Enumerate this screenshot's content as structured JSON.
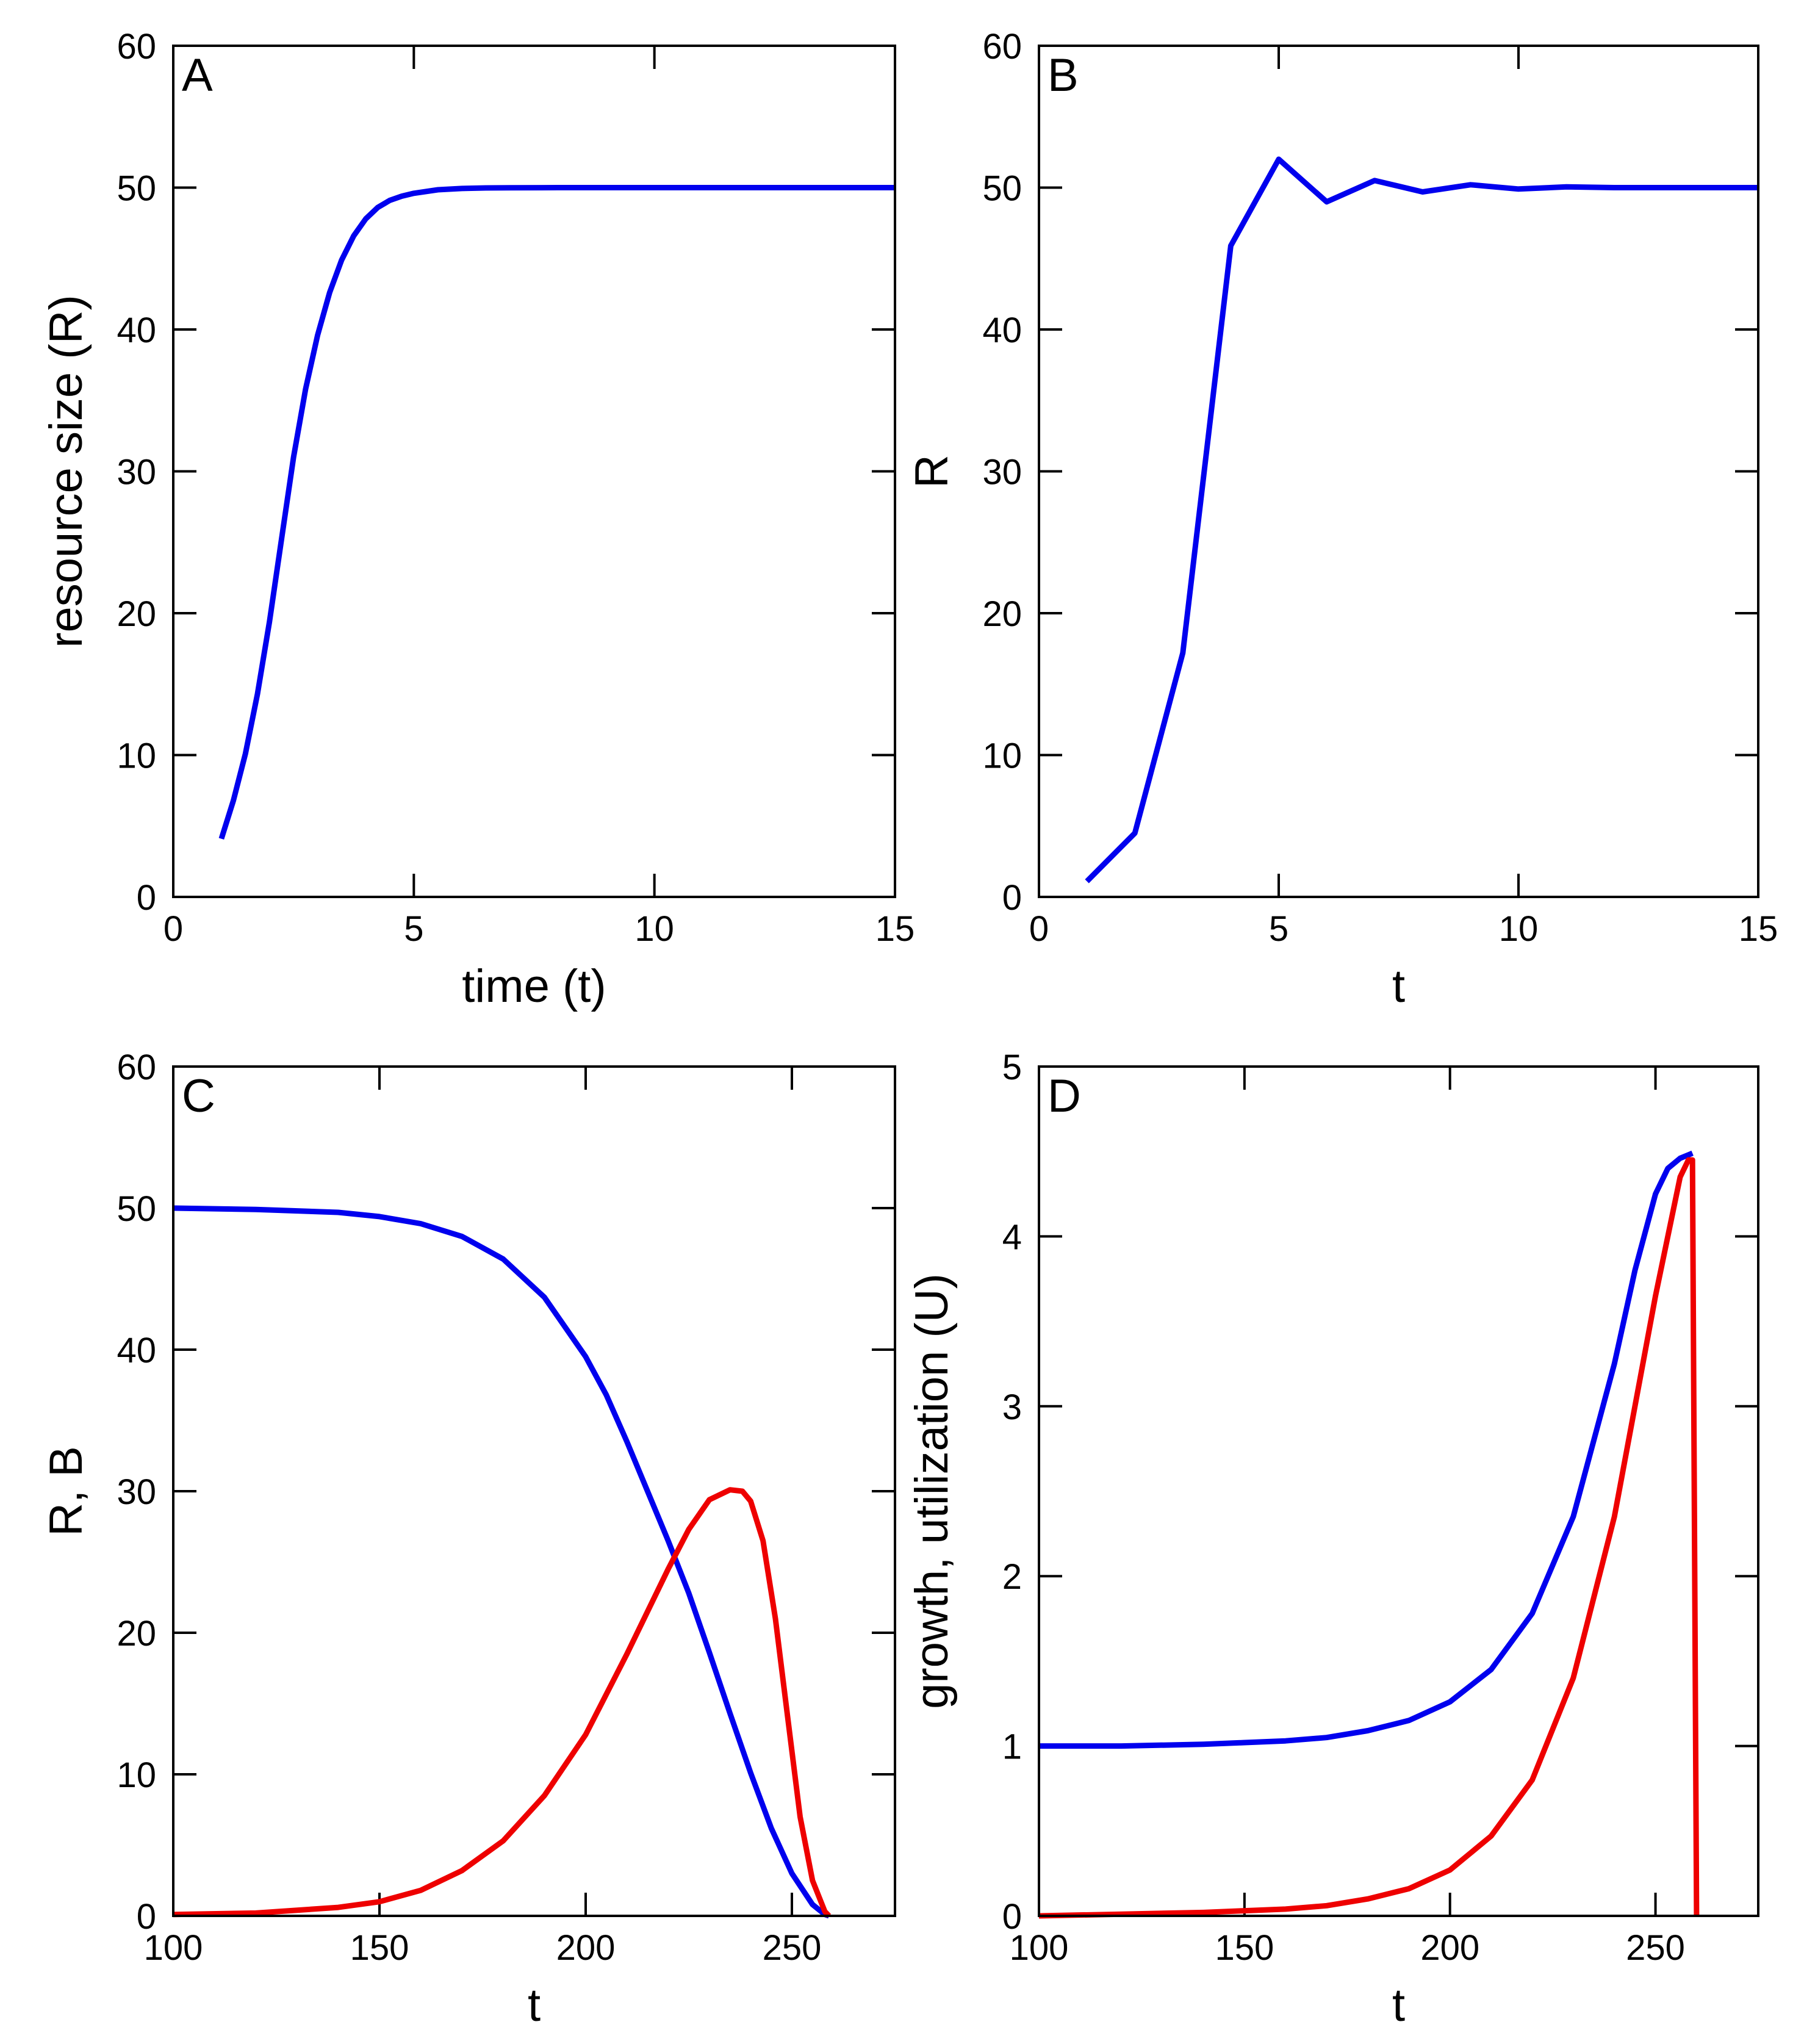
{
  "chart_data": [
    {
      "type": "line",
      "panel_label": "A",
      "xlabel": "time (t)",
      "ylabel": "resource size (R)",
      "xlim": [
        0,
        15
      ],
      "ylim": [
        0,
        60
      ],
      "xticks": [
        0,
        5,
        10,
        15
      ],
      "yticks": [
        0,
        10,
        20,
        30,
        40,
        50,
        60
      ],
      "series": [
        {
          "name": "R",
          "color": "#0000ee",
          "x": [
            1,
            1.25,
            1.5,
            1.75,
            2,
            2.25,
            2.5,
            2.75,
            3,
            3.25,
            3.5,
            3.75,
            4,
            4.25,
            4.5,
            4.75,
            5,
            5.5,
            6,
            6.5,
            7,
            8,
            9,
            10,
            11,
            12,
            13,
            14,
            15
          ],
          "y": [
            4.1,
            6.8,
            10.1,
            14.3,
            19.4,
            25.2,
            31.0,
            35.8,
            39.6,
            42.6,
            44.9,
            46.6,
            47.8,
            48.6,
            49.1,
            49.4,
            49.6,
            49.85,
            49.94,
            49.98,
            49.99,
            50,
            50,
            50,
            50,
            50,
            50,
            50,
            50
          ]
        }
      ]
    },
    {
      "type": "line",
      "panel_label": "B",
      "xlabel": "t",
      "ylabel": "R",
      "xlim": [
        0,
        15
      ],
      "ylim": [
        0,
        60
      ],
      "xticks": [
        0,
        5,
        10,
        15
      ],
      "yticks": [
        0,
        10,
        20,
        30,
        40,
        50,
        60
      ],
      "series": [
        {
          "name": "R",
          "color": "#0000ee",
          "x": [
            1,
            2,
            3,
            4,
            5,
            6,
            7,
            8,
            9,
            10,
            11,
            12,
            13,
            14,
            15
          ],
          "y": [
            1.1,
            4.5,
            17.2,
            45.9,
            52.0,
            49.0,
            50.5,
            49.7,
            50.2,
            49.9,
            50.05,
            50.0,
            50.0,
            50.0,
            50.0
          ]
        }
      ]
    },
    {
      "type": "line",
      "panel_label": "C",
      "xlabel": "t",
      "ylabel": "R, B",
      "xlim": [
        100,
        275
      ],
      "ylim": [
        0,
        60
      ],
      "xticks": [
        100,
        150,
        200,
        250
      ],
      "yticks": [
        0,
        10,
        20,
        30,
        40,
        50,
        60
      ],
      "series": [
        {
          "name": "R",
          "color": "#0000ee",
          "x": [
            100,
            120,
            140,
            150,
            160,
            170,
            180,
            190,
            200,
            205,
            210,
            215,
            220,
            225,
            230,
            235,
            240,
            245,
            250,
            255,
            258,
            259
          ],
          "y": [
            50.0,
            49.9,
            49.7,
            49.4,
            48.9,
            48.0,
            46.4,
            43.7,
            39.5,
            36.8,
            33.5,
            30.0,
            26.5,
            22.8,
            18.6,
            14.3,
            10.1,
            6.2,
            3.0,
            0.8,
            0.1,
            0.0
          ]
        },
        {
          "name": "B",
          "color": "#ee0000",
          "x": [
            100,
            120,
            140,
            150,
            160,
            170,
            180,
            190,
            200,
            210,
            220,
            225,
            230,
            235,
            238,
            240,
            243,
            246,
            249,
            252,
            255,
            258,
            259
          ],
          "y": [
            0.1,
            0.2,
            0.6,
            1.0,
            1.8,
            3.2,
            5.3,
            8.5,
            12.8,
            18.5,
            24.5,
            27.3,
            29.4,
            30.1,
            30.0,
            29.3,
            26.5,
            21.0,
            14.0,
            7.0,
            2.5,
            0.3,
            0.0
          ]
        }
      ]
    },
    {
      "type": "line",
      "panel_label": "D",
      "xlabel": "t",
      "ylabel": "growth, utilization (U)",
      "xlim": [
        100,
        275
      ],
      "ylim": [
        0,
        5
      ],
      "xticks": [
        100,
        150,
        200,
        250
      ],
      "yticks": [
        0,
        1,
        2,
        3,
        4,
        5
      ],
      "series": [
        {
          "name": "growth",
          "color": "#0000ee",
          "x": [
            100,
            120,
            140,
            150,
            160,
            170,
            180,
            190,
            200,
            210,
            220,
            230,
            240,
            245,
            250,
            253,
            256,
            258,
            259
          ],
          "y": [
            1.0,
            1.0,
            1.01,
            1.02,
            1.03,
            1.05,
            1.09,
            1.15,
            1.26,
            1.45,
            1.78,
            2.35,
            3.25,
            3.8,
            4.25,
            4.4,
            4.46,
            4.48,
            4.49
          ]
        },
        {
          "name": "utilization (U)",
          "color": "#ee0000",
          "x": [
            100,
            120,
            140,
            150,
            160,
            170,
            180,
            190,
            200,
            210,
            220,
            230,
            240,
            245,
            250,
            253,
            256,
            258,
            259,
            259.5,
            260
          ],
          "y": [
            0.0,
            0.01,
            0.02,
            0.03,
            0.04,
            0.06,
            0.1,
            0.16,
            0.27,
            0.47,
            0.8,
            1.4,
            2.35,
            3.0,
            3.65,
            4.0,
            4.35,
            4.45,
            4.45,
            2.2,
            0.0
          ]
        }
      ]
    }
  ]
}
